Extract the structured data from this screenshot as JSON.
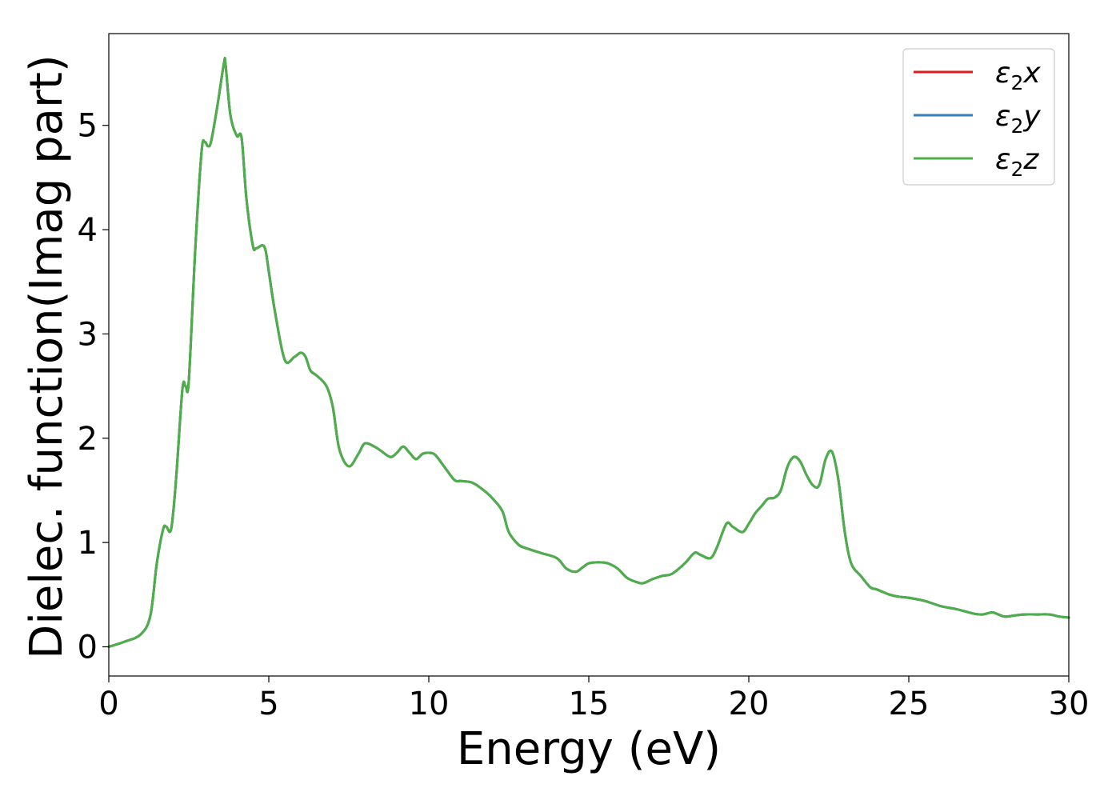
{
  "chart_data": {
    "type": "line",
    "title": "",
    "xlabel": "Energy (eV)",
    "ylabel": "Dielec. function(Imag part)",
    "xlim": [
      0,
      30
    ],
    "ylim": [
      -0.28,
      5.88
    ],
    "xticks": [
      0,
      5,
      10,
      15,
      20,
      25,
      30
    ],
    "yticks": [
      0,
      1,
      2,
      3,
      4,
      5
    ],
    "grid": false,
    "legend_position": "top-right",
    "series": [
      {
        "name": "ε₂x",
        "legend_base": "ε",
        "legend_sub": "2",
        "legend_suffix": "x",
        "color": "#e41a1c"
      },
      {
        "name": "ε₂y",
        "legend_base": "ε",
        "legend_sub": "2",
        "legend_suffix": "y",
        "color": "#377eb8"
      },
      {
        "name": "ε₂z",
        "legend_base": "ε",
        "legend_sub": "2",
        "legend_suffix": "z",
        "color": "#4daf4a"
      }
    ],
    "x": [
      0.0,
      0.5,
      1.0,
      1.3,
      1.5,
      1.7,
      1.8,
      1.95,
      2.1,
      2.3,
      2.4,
      2.5,
      2.7,
      2.9,
      3.0,
      3.1,
      3.2,
      3.4,
      3.6,
      3.65,
      3.8,
      4.0,
      4.15,
      4.3,
      4.5,
      4.6,
      4.8,
      4.9,
      5.0,
      5.2,
      5.5,
      5.8,
      6.0,
      6.15,
      6.3,
      6.5,
      6.8,
      7.0,
      7.2,
      7.5,
      7.8,
      8.0,
      8.3,
      8.5,
      8.8,
      9.0,
      9.2,
      9.4,
      9.6,
      9.8,
      10.0,
      10.2,
      10.5,
      10.8,
      11.0,
      11.3,
      11.5,
      11.8,
      12.0,
      12.3,
      12.5,
      12.8,
      13.0,
      13.5,
      14.0,
      14.3,
      14.6,
      14.8,
      15.0,
      15.3,
      15.6,
      15.9,
      16.2,
      16.5,
      16.7,
      17.0,
      17.3,
      17.6,
      18.0,
      18.3,
      18.5,
      18.8,
      19.0,
      19.3,
      19.5,
      19.8,
      20.0,
      20.2,
      20.4,
      20.6,
      20.8,
      21.0,
      21.2,
      21.4,
      21.6,
      21.8,
      22.0,
      22.2,
      22.4,
      22.6,
      22.8,
      23.0,
      23.2,
      23.5,
      23.8,
      24.0,
      24.4,
      24.7,
      25.0,
      25.5,
      26.0,
      26.5,
      27.0,
      27.3,
      27.6,
      27.8,
      28.0,
      28.3,
      28.6,
      29.0,
      29.4,
      29.7,
      30.0
    ],
    "y": [
      0.0,
      0.05,
      0.12,
      0.3,
      0.8,
      1.13,
      1.15,
      1.13,
      1.6,
      2.47,
      2.5,
      2.55,
      3.8,
      4.75,
      4.84,
      4.8,
      4.85,
      5.2,
      5.6,
      5.58,
      5.1,
      4.9,
      4.88,
      4.3,
      3.85,
      3.82,
      3.85,
      3.8,
      3.6,
      3.2,
      2.75,
      2.78,
      2.82,
      2.78,
      2.65,
      2.6,
      2.5,
      2.3,
      1.9,
      1.73,
      1.85,
      1.95,
      1.92,
      1.88,
      1.82,
      1.86,
      1.92,
      1.86,
      1.8,
      1.85,
      1.86,
      1.84,
      1.72,
      1.6,
      1.59,
      1.58,
      1.55,
      1.48,
      1.42,
      1.3,
      1.1,
      0.98,
      0.95,
      0.9,
      0.85,
      0.75,
      0.72,
      0.76,
      0.8,
      0.81,
      0.8,
      0.75,
      0.66,
      0.62,
      0.61,
      0.65,
      0.68,
      0.7,
      0.8,
      0.9,
      0.88,
      0.85,
      0.95,
      1.18,
      1.15,
      1.1,
      1.18,
      1.28,
      1.35,
      1.42,
      1.43,
      1.5,
      1.72,
      1.82,
      1.78,
      1.65,
      1.55,
      1.55,
      1.8,
      1.87,
      1.6,
      1.1,
      0.8,
      0.68,
      0.57,
      0.55,
      0.5,
      0.48,
      0.47,
      0.44,
      0.39,
      0.36,
      0.32,
      0.31,
      0.33,
      0.31,
      0.29,
      0.3,
      0.31,
      0.31,
      0.31,
      0.29,
      0.28
    ]
  }
}
